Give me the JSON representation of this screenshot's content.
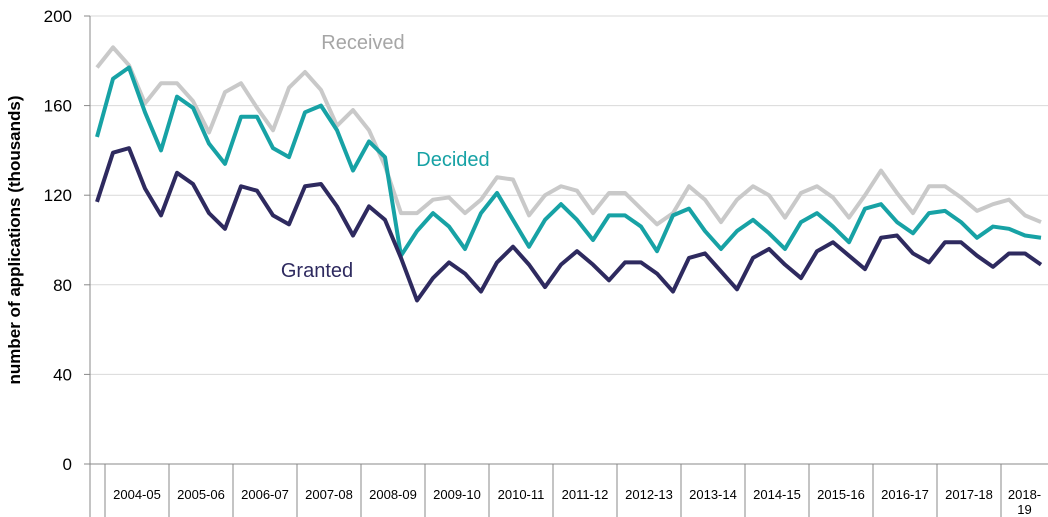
{
  "chart_data": {
    "type": "line",
    "y_label": "number of applications (thousands)",
    "categories": [
      null,
      "2004-05",
      null,
      null,
      null,
      "2005-06",
      null,
      null,
      null,
      "2006-07",
      null,
      null,
      null,
      "2007-08",
      null,
      null,
      null,
      "2008-09",
      null,
      null,
      null,
      "2009-10",
      null,
      null,
      null,
      "2010-11",
      null,
      null,
      null,
      "2011-12",
      null,
      null,
      null,
      "2012-13",
      null,
      null,
      null,
      "2013-14",
      null,
      null,
      null,
      "2014-15",
      null,
      null,
      null,
      "2015-16",
      null,
      null,
      null,
      "2016-17",
      null,
      null,
      null,
      "2017-18",
      null,
      null,
      null,
      "2018-19",
      null,
      null
    ],
    "series": [
      {
        "name": "Received",
        "color": "#c9c9c9",
        "label_color": "#a6a6a6",
        "values": [
          177,
          186,
          178,
          161,
          170,
          170,
          162,
          148,
          166,
          170,
          159,
          149,
          168,
          175,
          167,
          151,
          158,
          149,
          133,
          112,
          112,
          118,
          119,
          112,
          118,
          128,
          127,
          111,
          120,
          124,
          122,
          112,
          121,
          121,
          114,
          107,
          112,
          124,
          118,
          108,
          118,
          124,
          120,
          110,
          121,
          124,
          119,
          110,
          120,
          131,
          121,
          112,
          124,
          124,
          119,
          113,
          116,
          118,
          111,
          108
        ]
      },
      {
        "name": "Decided",
        "color": "#17a2a5",
        "label_color": "#17a2a5",
        "values": [
          146,
          172,
          177,
          157,
          140,
          164,
          159,
          143,
          134,
          155,
          155,
          141,
          137,
          157,
          160,
          149,
          131,
          144,
          137,
          93,
          104,
          112,
          106,
          96,
          112,
          121,
          109,
          97,
          109,
          116,
          109,
          100,
          111,
          111,
          106,
          95,
          111,
          114,
          104,
          96,
          104,
          109,
          103,
          96,
          108,
          112,
          106,
          99,
          114,
          116,
          108,
          103,
          112,
          113,
          108,
          101,
          106,
          105,
          102,
          101
        ]
      },
      {
        "name": "Granted",
        "color": "#2e2a5f",
        "label_color": "#2e2a5f",
        "values": [
          117,
          139,
          141,
          123,
          111,
          130,
          125,
          112,
          105,
          124,
          122,
          111,
          107,
          124,
          125,
          115,
          102,
          115,
          109,
          92,
          73,
          83,
          90,
          85,
          77,
          90,
          97,
          89,
          79,
          89,
          95,
          89,
          82,
          90,
          90,
          85,
          77,
          92,
          94,
          86,
          78,
          92,
          96,
          89,
          83,
          95,
          99,
          93,
          87,
          101,
          102,
          94,
          90,
          99,
          99,
          93,
          88,
          94,
          94,
          89
        ]
      }
    ],
    "ylim": [
      0,
      200
    ],
    "yticks": [
      0,
      40,
      80,
      120,
      160,
      200
    ],
    "grid": true
  }
}
